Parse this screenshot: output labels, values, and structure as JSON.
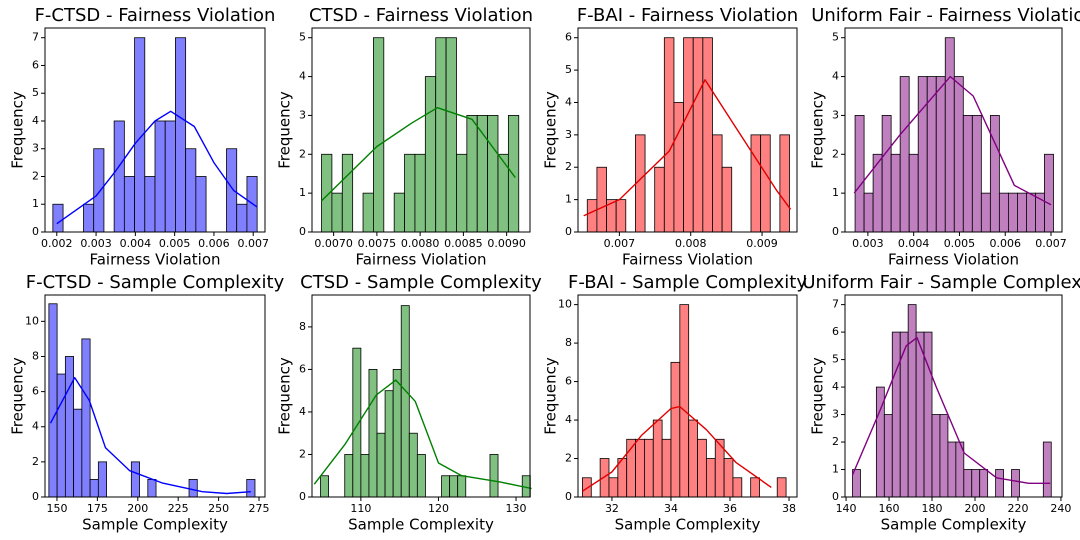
{
  "chart_data": [
    {
      "type": "histogram",
      "title": "F-CTSD - Fairness Violation",
      "xlabel": "Fairness Violation",
      "ylabel": "Frequency",
      "bins": [
        0.0019,
        0.00216,
        0.00242,
        0.00268,
        0.00294,
        0.0032,
        0.00346,
        0.00372,
        0.00398,
        0.00424,
        0.0045,
        0.00476,
        0.00502,
        0.00528,
        0.00554,
        0.0058,
        0.00606,
        0.00632,
        0.00658,
        0.00684,
        0.0071
      ],
      "counts": [
        1,
        0,
        0,
        1,
        3,
        0,
        4,
        2,
        7,
        2,
        4,
        4,
        7,
        3,
        2,
        0,
        0,
        3,
        1,
        2
      ],
      "color": "#8080ff",
      "kde": {
        "x": [
          0.002,
          0.003,
          0.0035,
          0.004,
          0.0045,
          0.0049,
          0.0055,
          0.006,
          0.0065,
          0.0071
        ],
        "values": [
          0.3,
          1.3,
          2.2,
          3.2,
          4.0,
          4.35,
          3.8,
          2.5,
          1.5,
          0.9
        ],
        "color": "#0000ff"
      },
      "xlim": [
        0.0017,
        0.0073
      ],
      "ylim": [
        0,
        7.35
      ],
      "xticks": [
        0.002,
        0.003,
        0.004,
        0.005,
        0.006,
        0.007
      ],
      "yticks": [
        0,
        1,
        2,
        3,
        4,
        5,
        6,
        7
      ]
    },
    {
      "type": "histogram",
      "title": "CTSD - Fairness Violation",
      "xlabel": "Fairness Violation",
      "ylabel": "Frequency",
      "bins": [
        0.00686,
        0.00698,
        0.0071,
        0.00722,
        0.00734,
        0.00746,
        0.00758,
        0.0077,
        0.00782,
        0.00794,
        0.00806,
        0.00818,
        0.0083,
        0.00842,
        0.00854,
        0.00866,
        0.00878,
        0.0089,
        0.00902,
        0.00914
      ],
      "counts": [
        2,
        1,
        2,
        0,
        1,
        5,
        0,
        1,
        2,
        2,
        4,
        5,
        5,
        2,
        3,
        3,
        3,
        2,
        3
      ],
      "color": "#80c080",
      "kde": {
        "x": [
          0.00686,
          0.0075,
          0.0079,
          0.0082,
          0.0086,
          0.0091
        ],
        "values": [
          0.8,
          2.2,
          2.8,
          3.2,
          2.9,
          1.4
        ],
        "color": "#008000"
      },
      "xlim": [
        0.00675,
        0.00927
      ],
      "ylim": [
        0,
        5.25
      ],
      "xticks": [
        {
          "value": 0.007,
          "label": "0.0070"
        },
        {
          "value": 0.0075,
          "label": "0.0075"
        },
        {
          "value": 0.008,
          "label": "0.0080"
        },
        {
          "value": 0.0085,
          "label": "0.0085"
        },
        {
          "value": 0.009,
          "label": "0.0090"
        }
      ],
      "yticks": [
        0,
        1,
        2,
        3,
        4,
        5
      ]
    },
    {
      "type": "histogram",
      "title": "F-BAI - Fairness Violation",
      "xlabel": "Fairness Violation",
      "ylabel": "Frequency",
      "bins": [
        0.00655,
        0.006685,
        0.00682,
        0.006955,
        0.00709,
        0.007225,
        0.00736,
        0.007495,
        0.00763,
        0.007765,
        0.0079,
        0.008035,
        0.00817,
        0.008305,
        0.00844,
        0.008575,
        0.00871,
        0.008845,
        0.00898,
        0.009115,
        0.00925,
        0.009385
      ],
      "counts": [
        1,
        2,
        1,
        1,
        0,
        3,
        0,
        2,
        6,
        4,
        6,
        6,
        6,
        3,
        2,
        0,
        0,
        3,
        3,
        0,
        3
      ],
      "color": "#ff8080",
      "kde": {
        "x": [
          0.0065,
          0.007,
          0.0077,
          0.0082,
          0.0087,
          0.0092,
          0.0094
        ],
        "values": [
          0.5,
          1.0,
          2.5,
          4.7,
          3.0,
          1.3,
          0.7
        ],
        "color": "#e00000"
      },
      "xlim": [
        0.00642,
        0.00949
      ],
      "ylim": [
        0,
        6.3
      ],
      "xticks": [
        0.007,
        0.008,
        0.009
      ],
      "yticks": [
        0,
        1,
        2,
        3,
        4,
        5,
        6
      ]
    },
    {
      "type": "histogram",
      "title": "Uniform Fair - Fairness Violation",
      "xlabel": "Fairness Violation",
      "ylabel": "Frequency",
      "bins": [
        0.00272,
        0.002917,
        0.003114,
        0.003311,
        0.003508,
        0.003705,
        0.003902,
        0.004099,
        0.004296,
        0.004493,
        0.00469,
        0.004887,
        0.005084,
        0.005281,
        0.005478,
        0.005675,
        0.005872,
        0.006069,
        0.006266,
        0.006463,
        0.00666,
        0.006857,
        0.007054
      ],
      "counts": [
        3,
        1,
        2,
        3,
        2,
        4,
        2,
        4,
        4,
        4,
        5,
        4,
        3,
        3,
        1,
        3,
        1,
        1,
        1,
        1,
        1,
        2
      ],
      "color": "#c080c0",
      "kde": {
        "x": [
          0.0027,
          0.0037,
          0.0048,
          0.0053,
          0.0062,
          0.007
        ],
        "values": [
          1.0,
          2.5,
          4.0,
          3.5,
          1.2,
          0.7
        ],
        "color": "#800080"
      },
      "xlim": [
        0.0025,
        0.00724
      ],
      "ylim": [
        0,
        5.25
      ],
      "xticks": [
        0.003,
        0.004,
        0.005,
        0.006,
        0.007
      ],
      "yticks": [
        0,
        1,
        2,
        3,
        4,
        5
      ]
    },
    {
      "type": "histogram",
      "title": "F-CTSD - Sample Complexity",
      "xlabel": "Sample Complexity",
      "ylabel": "Frequency",
      "bins": [
        145,
        150.1,
        155.2,
        160.3,
        165.4,
        170.5,
        175.6,
        180.7,
        185.8,
        190.9,
        196,
        201.1,
        206.2,
        211.3,
        216.4,
        221.5,
        226.6,
        231.7,
        236.8,
        241.9,
        247,
        252.1,
        257.2,
        262.3,
        267.4,
        272.5
      ],
      "counts": [
        11,
        7,
        8,
        5,
        9,
        1,
        2,
        0,
        0,
        0,
        2,
        0,
        1,
        0,
        0,
        0,
        0,
        1,
        0,
        0,
        0,
        0,
        0,
        0,
        1
      ],
      "color": "#8080ff",
      "kde": {
        "x": [
          146,
          161,
          170,
          180,
          195,
          215,
          240,
          255,
          270
        ],
        "values": [
          4.2,
          6.8,
          5.5,
          2.8,
          1.5,
          0.8,
          0.3,
          0.2,
          0.3
        ],
        "color": "#0000ff"
      },
      "xlim": [
        142.6,
        278.7
      ],
      "ylim": [
        0,
        11.5
      ],
      "xticks": [
        150,
        175,
        200,
        225,
        250,
        275
      ],
      "yticks": [
        0,
        2,
        4,
        6,
        8,
        10
      ]
    },
    {
      "type": "histogram",
      "title": "CTSD - Sample Complexity",
      "xlabel": "Sample Complexity",
      "ylabel": "Frequency",
      "bins": [
        104.8,
        105.84,
        106.88,
        107.92,
        108.96,
        110,
        111.04,
        112.08,
        113.12,
        114.16,
        115.2,
        116.24,
        117.28,
        118.32,
        119.36,
        120.4,
        121.44,
        122.48,
        123.52,
        124.56,
        125.6,
        126.64,
        127.68,
        128.72,
        129.76,
        130.8,
        131.84
      ],
      "counts": [
        1,
        0,
        0,
        2,
        7,
        2,
        6,
        3,
        5,
        6,
        9,
        3,
        2,
        0,
        0,
        1,
        1,
        1,
        0,
        0,
        0,
        2,
        0,
        0,
        0,
        1
      ],
      "color": "#80c080",
      "kde": {
        "x": [
          104,
          108,
          112,
          114.5,
          117,
          120,
          123,
          128,
          132
        ],
        "values": [
          0.6,
          2.5,
          4.8,
          5.5,
          4.5,
          1.6,
          1.0,
          0.7,
          0.4
        ],
        "color": "#008000"
      },
      "xlim": [
        103.7,
        131.8
      ],
      "ylim": [
        0,
        9.5
      ],
      "xticks": [
        110,
        120,
        130
      ],
      "yticks": [
        0,
        2,
        4,
        6,
        8
      ]
    },
    {
      "type": "histogram",
      "title": "F-BAI - Sample Complexity",
      "xlabel": "Sample Complexity",
      "ylabel": "Frequency",
      "bins": [
        31,
        31.3,
        31.6,
        31.9,
        32.2,
        32.5,
        32.8,
        33.1,
        33.4,
        33.7,
        34,
        34.3,
        34.6,
        34.9,
        35.2,
        35.5,
        35.8,
        36.1,
        36.4,
        36.7,
        37,
        37.3,
        37.6,
        37.9
      ],
      "counts": [
        1,
        0,
        2,
        1,
        2,
        3,
        3,
        3,
        4,
        3,
        7,
        10,
        4,
        3,
        2,
        3,
        2,
        1,
        0,
        1,
        0,
        0,
        1
      ],
      "color": "#ff8080",
      "kde": {
        "x": [
          31,
          32,
          33,
          34,
          34.3,
          35.2,
          36.2,
          37.4
        ],
        "values": [
          0.3,
          1.3,
          3.2,
          4.6,
          4.7,
          3.5,
          1.8,
          0.5
        ],
        "color": "#e00000"
      },
      "xlim": [
        30.85,
        38.27
      ],
      "ylim": [
        0,
        10.5
      ],
      "xticks": [
        32,
        34,
        36,
        38
      ],
      "yticks": [
        0,
        2,
        4,
        6,
        8,
        10
      ]
    },
    {
      "type": "histogram",
      "title": "Uniform Fair - Sample Complexity",
      "xlabel": "Sample Complexity",
      "ylabel": "Frequency",
      "bins": [
        143,
        146.7,
        150.4,
        154.1,
        157.8,
        161.5,
        165.2,
        168.9,
        172.6,
        176.3,
        180,
        183.7,
        187.4,
        191.1,
        194.8,
        198.5,
        202.2,
        205.9,
        209.6,
        213.3,
        217,
        220.7,
        224.4,
        228.1,
        231.8,
        235.5
      ],
      "counts": [
        1,
        0,
        0,
        4,
        3,
        6,
        6,
        7,
        6,
        6,
        3,
        3,
        2,
        2,
        1,
        1,
        1,
        0,
        1,
        0,
        1,
        0,
        0,
        0,
        2
      ],
      "color": "#c080c0",
      "kde": {
        "x": [
          143,
          155,
          168,
          173,
          182,
          195,
          210,
          225,
          235
        ],
        "values": [
          0.8,
          3,
          5.5,
          5.8,
          4,
          1.6,
          0.7,
          0.5,
          0.5
        ],
        "color": "#800080"
      },
      "xlim": [
        139.5,
        240.5
      ],
      "ylim": [
        0,
        7.35
      ],
      "xticks": [
        140,
        160,
        180,
        200,
        220,
        240
      ],
      "yticks": [
        0,
        1,
        2,
        3,
        4,
        5,
        6,
        7
      ]
    }
  ]
}
